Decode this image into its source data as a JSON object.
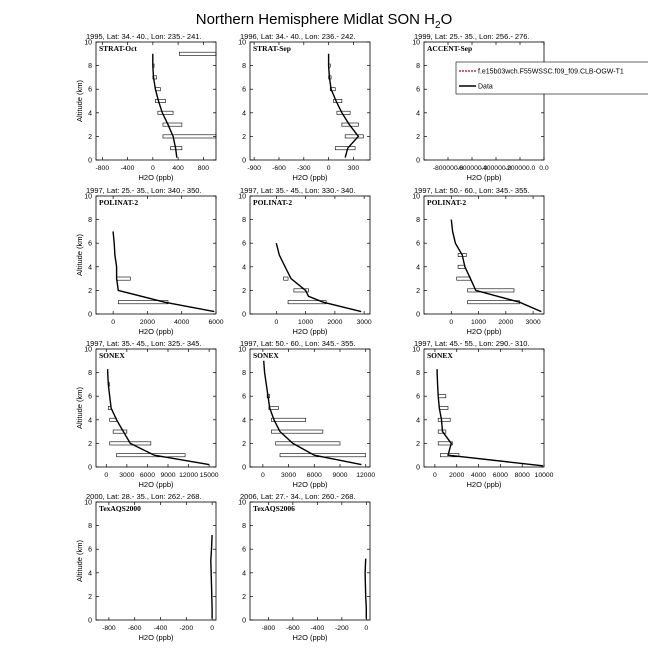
{
  "page": {
    "title": "Northern Hemisphere Midlat SON H",
    "title_sub": "2",
    "title_tail": "O"
  },
  "legend": {
    "model_label": "f.e15b03wch.F55WSSC.f09_f09.CLB-OGW-T1",
    "obs_label": "Data",
    "model_color": "#cc0000",
    "obs_color": "#000000"
  },
  "chart_data": [
    {
      "type": "line",
      "header": "1995, Lat: 34.- 40., Lon: 235.- 241.",
      "campaign": "STRAT-Oct",
      "xlabel": "H2O (ppb)",
      "ylabel": "Altitude (km)",
      "xlim": [
        -900,
        1000
      ],
      "ylim": [
        0,
        10
      ],
      "xticks": [
        -800,
        -400,
        0,
        400,
        800
      ],
      "xtick_labels": [
        "-800",
        "-400",
        "0",
        "400",
        "800"
      ],
      "yticks": [
        0,
        2,
        4,
        6,
        8,
        10
      ],
      "show_ylabel": true,
      "data_line": {
        "x": [
          380,
          360,
          320,
          240,
          150,
          90,
          40,
          10,
          0,
          0
        ],
        "y": [
          0.2,
          1.0,
          2.0,
          3.0,
          4.0,
          5.0,
          6.0,
          7.0,
          8.0,
          9.0
        ]
      },
      "boxes": [
        [
          420,
          1000,
          9.0
        ],
        [
          0,
          20,
          8.0
        ],
        [
          0,
          60,
          7.0
        ],
        [
          40,
          120,
          6.0
        ],
        [
          40,
          200,
          5.0
        ],
        [
          80,
          320,
          4.0
        ],
        [
          160,
          460,
          3.0
        ],
        [
          160,
          1000,
          2.0
        ],
        [
          280,
          460,
          1.0
        ]
      ]
    },
    {
      "type": "line",
      "header": "1996, Lat: 34.- 40., Lon: 236.- 242.",
      "campaign": "STRAT-Sep",
      "xlabel": "H2O (ppb)",
      "ylabel": "Altitude (km)",
      "xlim": [
        -950,
        500
      ],
      "ylim": [
        0,
        10
      ],
      "xticks": [
        -900,
        -600,
        -300,
        0,
        300
      ],
      "xtick_labels": [
        "-900",
        "-600",
        "-300",
        "0",
        "300"
      ],
      "yticks": [
        0,
        2,
        4,
        6,
        8,
        10
      ],
      "show_ylabel": false,
      "data_line": {
        "x": [
          200,
          230,
          360,
          250,
          160,
          90,
          30,
          10,
          0,
          0
        ],
        "y": [
          0.2,
          1.0,
          2.0,
          3.0,
          4.0,
          5.0,
          6.0,
          7.0,
          8.0,
          9.0
        ]
      },
      "boxes": [
        [
          0,
          20,
          8.0
        ],
        [
          0,
          30,
          7.0
        ],
        [
          20,
          80,
          6.0
        ],
        [
          60,
          160,
          5.0
        ],
        [
          100,
          260,
          4.0
        ],
        [
          160,
          360,
          3.0
        ],
        [
          200,
          420,
          2.0
        ],
        [
          80,
          320,
          1.0
        ]
      ]
    },
    {
      "type": "line",
      "header": "1999, Lat: 25.- 35., Lon: 256.- 276.",
      "campaign": "ACCENT-Sep",
      "xlabel": "H2O (ppb)",
      "ylabel": "Altitude (km)",
      "xlim": [
        -1000000,
        0
      ],
      "ylim": [
        0,
        10
      ],
      "xticks": [
        -800000,
        -600000,
        -400000,
        -200000,
        0
      ],
      "xtick_labels": [
        "-800000.0",
        "-600000.0",
        "-400000.0",
        "-200000.0",
        "0.0"
      ],
      "yticks": [
        0,
        2,
        4,
        6,
        8,
        10
      ],
      "show_ylabel": false,
      "has_legend": true,
      "data_line": {
        "x": [],
        "y": []
      },
      "boxes": []
    },
    {
      "type": "line",
      "header": "1997, Lat: 25.- 35., Lon: 340.- 350.",
      "campaign": "POLINAT-2",
      "xlabel": "H2O (ppb)",
      "ylabel": "Altitude (km)",
      "xlim": [
        -1000,
        6000
      ],
      "ylim": [
        0,
        10
      ],
      "xticks": [
        0,
        2000,
        4000,
        6000
      ],
      "xtick_labels": [
        "0",
        "2000",
        "4000",
        "6000"
      ],
      "yticks": [
        0,
        2,
        4,
        6,
        8,
        10
      ],
      "show_ylabel": true,
      "data_line": {
        "x": [
          5900,
          3000,
          300,
          200,
          200,
          100,
          60,
          0
        ],
        "y": [
          0.2,
          1.0,
          2.0,
          3.0,
          4.0,
          5.0,
          6.0,
          7.0
        ]
      },
      "boxes": [
        [
          200,
          1000,
          3.0
        ],
        [
          300,
          3200,
          1.0
        ]
      ]
    },
    {
      "type": "line",
      "header": "1997, Lat: 35.- 45., Lon: 330.- 340.",
      "campaign": "POLINAT-2",
      "xlabel": "H2O (ppb)",
      "ylabel": "Altitude (km)",
      "xlim": [
        -900,
        3200
      ],
      "ylim": [
        0,
        10
      ],
      "xticks": [
        0,
        1000,
        2000,
        3000
      ],
      "xtick_labels": [
        "0",
        "1000",
        "2000",
        "3000"
      ],
      "yticks": [
        0,
        2,
        4,
        6,
        8,
        10
      ],
      "show_ylabel": false,
      "data_line": {
        "x": [
          2900,
          1600,
          1100,
          1000,
          500,
          300,
          100,
          0
        ],
        "y": [
          0.2,
          1.0,
          1.5,
          2.0,
          3.0,
          4.0,
          5.0,
          6.0
        ]
      },
      "boxes": [
        [
          250,
          400,
          3.0
        ],
        [
          600,
          1100,
          2.0
        ],
        [
          400,
          1700,
          1.0
        ]
      ]
    },
    {
      "type": "line",
      "header": "1997, Lat: 50.- 60., Lon: 345.- 355.",
      "campaign": "POLINAT-2",
      "xlabel": "H2O (ppb)",
      "ylabel": "Altitude (km)",
      "xlim": [
        -1000,
        3400
      ],
      "ylim": [
        0,
        10
      ],
      "xticks": [
        0,
        1000,
        2000,
        3000
      ],
      "xtick_labels": [
        "0",
        "1000",
        "2000",
        "3000"
      ],
      "yticks": [
        0,
        2,
        4,
        6,
        8,
        10
      ],
      "show_ylabel": false,
      "data_line": {
        "x": [
          3300,
          2500,
          900,
          700,
          500,
          400,
          150,
          50,
          0
        ],
        "y": [
          0.2,
          1.0,
          2.0,
          3.0,
          4.0,
          5.0,
          6.0,
          7.0,
          8.0
        ]
      },
      "boxes": [
        [
          250,
          550,
          5.0
        ],
        [
          250,
          500,
          4.0
        ],
        [
          200,
          700,
          3.0
        ],
        [
          600,
          2300,
          2.0
        ],
        [
          600,
          2500,
          1.0
        ]
      ]
    },
    {
      "type": "line",
      "header": "1997, Lat: 35.- 45., Lon: 325.- 345.",
      "campaign": "SONEX",
      "xlabel": "H2O (ppb)",
      "ylabel": "Altitude (km)",
      "xlim": [
        -1500,
        16000
      ],
      "ylim": [
        0,
        10
      ],
      "xticks": [
        0,
        3000,
        6000,
        9000,
        12000,
        15000
      ],
      "xtick_labels": [
        "0",
        "3000",
        "6000",
        "9000",
        "12000",
        "15000"
      ],
      "yticks": [
        0,
        2,
        4,
        6,
        8,
        10
      ],
      "show_ylabel": true,
      "data_line": {
        "x": [
          15000,
          7000,
          3500,
          2500,
          1500,
          700,
          500,
          300,
          200,
          200
        ],
        "y": [
          0.2,
          1.0,
          2.0,
          3.0,
          4.0,
          5.0,
          6.0,
          7.0,
          8.0,
          8.3
        ]
      },
      "boxes": [
        [
          300,
          500,
          7.0
        ],
        [
          300,
          700,
          5.0
        ],
        [
          500,
          1500,
          4.0
        ],
        [
          1000,
          3000,
          3.0
        ],
        [
          500,
          6500,
          2.0
        ],
        [
          1500,
          11500,
          1.0
        ]
      ]
    },
    {
      "type": "line",
      "header": "1997, Lat: 50.- 60., Lon: 345.- 355.",
      "campaign": "SONEX",
      "xlabel": "H2O (ppb)",
      "ylabel": "Altitude (km)",
      "xlim": [
        -1500,
        12500
      ],
      "ylim": [
        0,
        10
      ],
      "xticks": [
        0,
        3000,
        6000,
        9000,
        12000
      ],
      "xtick_labels": [
        "0",
        "3000",
        "6000",
        "9000",
        "12000"
      ],
      "yticks": [
        0,
        2,
        4,
        6,
        8,
        10
      ],
      "show_ylabel": false,
      "data_line": {
        "x": [
          11500,
          6000,
          3500,
          2000,
          1300,
          800,
          600,
          400,
          200,
          100
        ],
        "y": [
          0.2,
          1.0,
          2.0,
          3.0,
          4.0,
          5.0,
          6.0,
          7.0,
          8.0,
          9.0
        ]
      },
      "boxes": [
        [
          500,
          800,
          6.0
        ],
        [
          700,
          1800,
          5.0
        ],
        [
          1000,
          5000,
          4.0
        ],
        [
          1000,
          7000,
          3.0
        ],
        [
          1500,
          9000,
          2.0
        ],
        [
          2000,
          12000,
          1.0
        ]
      ]
    },
    {
      "type": "line",
      "header": "1997, Lat: 45.- 55., Lon: 290.- 310.",
      "campaign": "SONEX",
      "xlabel": "H2O (ppb)",
      "ylabel": "Altitude (km)",
      "xlim": [
        -1000,
        10000
      ],
      "ylim": [
        0,
        10
      ],
      "xticks": [
        0,
        2000,
        4000,
        6000,
        8000,
        10000
      ],
      "xtick_labels": [
        "0",
        "2000",
        "4000",
        "6000",
        "8000",
        "10000"
      ],
      "yticks": [
        0,
        2,
        4,
        6,
        8,
        10
      ],
      "show_ylabel": false,
      "data_line": {
        "x": [
          9900,
          1200,
          1500,
          700,
          600,
          400,
          300,
          250,
          200,
          200
        ],
        "y": [
          0.1,
          1.0,
          2.0,
          3.0,
          4.0,
          5.0,
          6.0,
          7.0,
          8.0,
          8.3
        ]
      },
      "boxes": [
        [
          300,
          1000,
          6.0
        ],
        [
          400,
          1200,
          5.0
        ],
        [
          300,
          1400,
          4.0
        ],
        [
          300,
          1000,
          3.0
        ],
        [
          300,
          1600,
          2.0
        ],
        [
          500,
          2200,
          1.0
        ]
      ]
    },
    {
      "type": "line",
      "header": "2000, Lat: 28.- 35., Lon: 262.- 268.",
      "campaign": "TexAQS2000",
      "xlabel": "H2O (ppb)",
      "ylabel": "Altitude (km)",
      "xlim": [
        -900,
        30
      ],
      "ylim": [
        0,
        10
      ],
      "xticks": [
        -800,
        -600,
        -400,
        -200,
        0
      ],
      "xtick_labels": [
        "-800",
        "-600",
        "-400",
        "-200",
        "0"
      ],
      "yticks": [
        0,
        2,
        4,
        6,
        8,
        10
      ],
      "show_ylabel": true,
      "data_line": {
        "x": [
          0,
          0,
          -5,
          -10,
          -5,
          0
        ],
        "y": [
          0.1,
          1.0,
          3.0,
          5.0,
          6.0,
          7.2
        ]
      },
      "boxes": []
    },
    {
      "type": "line",
      "header": "2006, Lat: 27.- 34., Lon: 260.- 268.",
      "campaign": "TexAQS2006",
      "xlabel": "H2O (ppb)",
      "ylabel": "Altitude (km)",
      "xlim": [
        -950,
        30
      ],
      "ylim": [
        0,
        10
      ],
      "xticks": [
        -800,
        -600,
        -400,
        -200,
        0
      ],
      "xtick_labels": [
        "-800",
        "-600",
        "-400",
        "-200",
        "0"
      ],
      "yticks": [
        0,
        2,
        4,
        6,
        8,
        10
      ],
      "show_ylabel": false,
      "data_line": {
        "x": [
          0,
          0,
          -5,
          -10,
          -5
        ],
        "y": [
          0.1,
          1.0,
          2.0,
          4.0,
          5.2
        ]
      },
      "boxes": []
    }
  ]
}
